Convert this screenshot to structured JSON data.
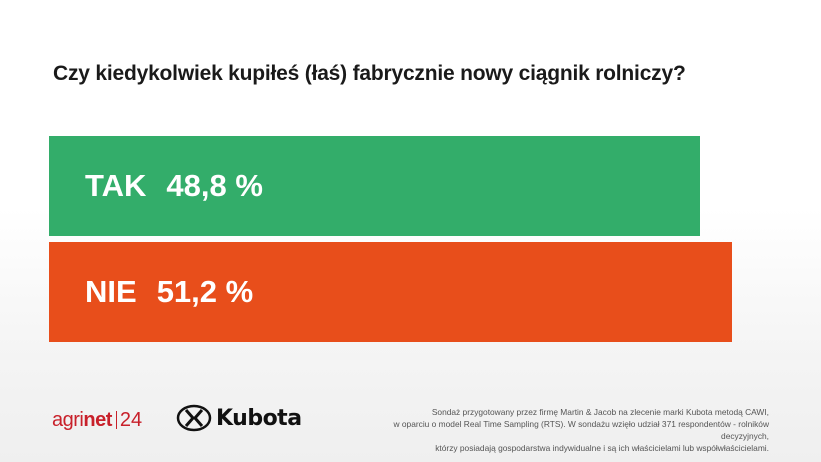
{
  "title": "Czy kiedykolwiek kupiłeś (łaś) fabrycznie nowy ciągnik rolniczy?",
  "chart_data": {
    "type": "bar",
    "orientation": "horizontal",
    "title": "Czy kiedykolwiek kupiłeś (łaś) fabrycznie nowy ciągnik rolniczy?",
    "categories": [
      "TAK",
      "NIE"
    ],
    "values": [
      48.8,
      51.2
    ],
    "value_labels": [
      "48,8 %",
      "51,2 %"
    ],
    "unit": "%",
    "colors": [
      "#33ad6a",
      "#e84e1b"
    ],
    "grid": false,
    "legend": "none"
  },
  "footer": {
    "logo_agrinet": {
      "agri": "agri",
      "net": "net",
      "num": "24"
    },
    "logo_kubota": "Kubota",
    "note_lines": [
      "Sondaż przygotowany przez firmę Martin & Jacob na zlecenie marki Kubota metodą CAWI,",
      "w oparciu o model Real Time Sampling (RTS). W sondażu wzięło udział 371 respondentów - rolników decyzyjnych,",
      "którzy posiadają gospodarstwa indywidualne i są ich właścicielami lub współwłaścicielami."
    ]
  }
}
